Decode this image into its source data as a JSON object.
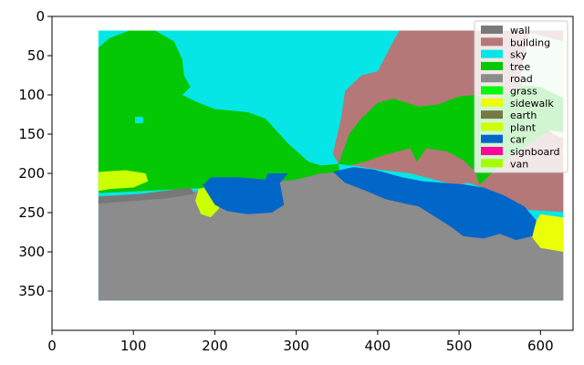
{
  "chart_data": {
    "type": "heatmap",
    "title": "",
    "xlabel": "",
    "ylabel": "",
    "xlim": [
      0,
      640
    ],
    "ylim": [
      400,
      0
    ],
    "x_ticks": [
      "0",
      "100",
      "200",
      "300",
      "400",
      "500",
      "600"
    ],
    "y_ticks": [
      "0",
      "50",
      "100",
      "150",
      "200",
      "250",
      "300",
      "350"
    ],
    "legend_position": "top-right",
    "legend": [
      {
        "label": "wall",
        "color": "#787878"
      },
      {
        "label": "building",
        "color": "#b47878"
      },
      {
        "label": "sky",
        "color": "#06e6e6"
      },
      {
        "label": "tree",
        "color": "#04c803"
      },
      {
        "label": "road",
        "color": "#8c8c8c"
      },
      {
        "label": "grass",
        "color": "#04fa07"
      },
      {
        "label": "sidewalk",
        "color": "#ebff07"
      },
      {
        "label": "earth",
        "color": "#787846"
      },
      {
        "label": "plant",
        "color": "#ccff04"
      },
      {
        "label": "car",
        "color": "#0066c8"
      },
      {
        "label": "signboard",
        "color": "#ff0599"
      },
      {
        "label": "van",
        "color": "#a3ff00"
      }
    ]
  }
}
